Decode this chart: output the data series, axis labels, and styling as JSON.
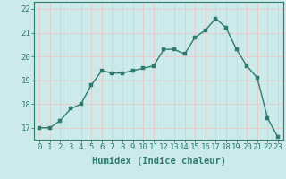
{
  "xlabel": "Humidex (Indice chaleur)",
  "x": [
    0,
    1,
    2,
    3,
    4,
    5,
    6,
    7,
    8,
    9,
    10,
    11,
    12,
    13,
    14,
    15,
    16,
    17,
    18,
    19,
    20,
    21,
    22,
    23
  ],
  "y": [
    17.0,
    17.0,
    17.3,
    17.8,
    18.0,
    18.8,
    19.4,
    19.3,
    19.3,
    19.4,
    19.5,
    19.6,
    20.3,
    20.3,
    20.1,
    20.8,
    21.1,
    21.6,
    21.2,
    20.3,
    19.6,
    19.1,
    17.4,
    16.6
  ],
  "line_color": "#2d7a6e",
  "marker": "s",
  "marker_size": 2.5,
  "background_color": "#cdeaea",
  "grid_color": "#e8c8c8",
  "ylim": [
    16.5,
    22.3
  ],
  "yticks": [
    17,
    18,
    19,
    20,
    21,
    22
  ],
  "xticks": [
    0,
    1,
    2,
    3,
    4,
    5,
    6,
    7,
    8,
    9,
    10,
    11,
    12,
    13,
    14,
    15,
    16,
    17,
    18,
    19,
    20,
    21,
    22,
    23
  ],
  "xlabel_fontsize": 7.5,
  "tick_fontsize": 6.5,
  "line_width": 1.0,
  "axes_color": "#2d7a6e"
}
